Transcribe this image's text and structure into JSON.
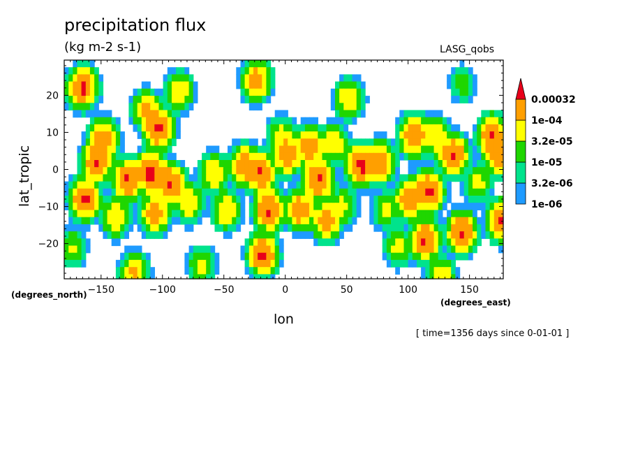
{
  "chart_data": {
    "type": "heatmap",
    "title": "precipitation flux",
    "units": "(kg m-2 s-1)",
    "dataset": "LASG_qobs",
    "xlabel": "lon",
    "ylabel": "lat_tropic",
    "x_unit_label": "(degrees_east)",
    "y_unit_label": "(degrees_north)",
    "xlim": [
      -180,
      177.5
    ],
    "ylim": [
      -29.5,
      29.5
    ],
    "x_ticks": [
      -150,
      -100,
      -50,
      0,
      50,
      100,
      150
    ],
    "x_tick_labels": [
      "−150",
      "−100",
      "−50",
      "0",
      "50",
      "100",
      "150"
    ],
    "y_ticks": [
      20,
      10,
      0,
      -10,
      -20
    ],
    "y_tick_labels": [
      "20",
      "10",
      "0",
      "−10",
      "−20"
    ],
    "timestamp": "[ time=1356 days since 0-01-01 ]",
    "colorbar": {
      "levels": [
        "1e-06",
        "3.2e-06",
        "1e-05",
        "3.2e-05",
        "1e-04",
        "0.00032"
      ],
      "level_values": [
        1e-06,
        3.2e-06,
        1e-05,
        3.2e-05,
        0.0001,
        0.00032
      ],
      "colors": [
        "#ffffff",
        "#1e9bff",
        "#00e38c",
        "#1fd600",
        "#ffff00",
        "#ff9f00",
        "#e8001a"
      ]
    },
    "blobs": [
      {
        "lon": -167,
        "lat": 23,
        "peak": 0.00038
      },
      {
        "lon": -150,
        "lat": 9,
        "peak": 0.00025
      },
      {
        "lon": -155,
        "lat": 3,
        "peak": 0.00035
      },
      {
        "lon": -165,
        "lat": -7,
        "peak": 0.0004
      },
      {
        "lon": -175,
        "lat": -20,
        "peak": 4e-05
      },
      {
        "lon": -130,
        "lat": -2,
        "peak": 0.00035
      },
      {
        "lon": -140,
        "lat": -12,
        "peak": 0.0001
      },
      {
        "lon": -125,
        "lat": -27,
        "peak": 0.00012
      },
      {
        "lon": -115,
        "lat": 17,
        "peak": 0.00012
      },
      {
        "lon": -105,
        "lat": 12,
        "peak": 0.0004
      },
      {
        "lon": -110,
        "lat": 0,
        "peak": 0.00036
      },
      {
        "lon": -95,
        "lat": -3,
        "peak": 0.00036
      },
      {
        "lon": -108,
        "lat": -11,
        "peak": 0.0002
      },
      {
        "lon": -88,
        "lat": 22,
        "peak": 0.0001
      },
      {
        "lon": -80,
        "lat": -8,
        "peak": 0.0001
      },
      {
        "lon": -70,
        "lat": -25,
        "peak": 5e-05
      },
      {
        "lon": -60,
        "lat": 0,
        "peak": 0.0001
      },
      {
        "lon": -50,
        "lat": -10,
        "peak": 0.0001
      },
      {
        "lon": -35,
        "lat": 2,
        "peak": 0.00025
      },
      {
        "lon": -22,
        "lat": 0,
        "peak": 0.00035
      },
      {
        "lon": -20,
        "lat": -22,
        "peak": 0.00038
      },
      {
        "lon": -25,
        "lat": 25,
        "peak": 0.0002
      },
      {
        "lon": -15,
        "lat": -10,
        "peak": 0.00035
      },
      {
        "lon": -5,
        "lat": 10,
        "peak": 5e-05
      },
      {
        "lon": 0,
        "lat": 5,
        "peak": 0.00025
      },
      {
        "lon": 10,
        "lat": -10,
        "peak": 0.00025
      },
      {
        "lon": 18,
        "lat": 7,
        "peak": 0.00025
      },
      {
        "lon": 25,
        "lat": -2,
        "peak": 0.00036
      },
      {
        "lon": 32,
        "lat": -13,
        "peak": 0.0002
      },
      {
        "lon": 38,
        "lat": 8,
        "peak": 0.0001
      },
      {
        "lon": 50,
        "lat": 20,
        "peak": 0.0001
      },
      {
        "lon": 60,
        "lat": 2,
        "peak": 0.0004
      },
      {
        "lon": 45,
        "lat": -9,
        "peak": 5e-05
      },
      {
        "lon": 75,
        "lat": 3,
        "peak": 0.0003
      },
      {
        "lon": 80,
        "lat": -10,
        "peak": 4e-05
      },
      {
        "lon": 90,
        "lat": -20,
        "peak": 5e-05
      },
      {
        "lon": 103,
        "lat": 10,
        "peak": 0.0003
      },
      {
        "lon": 100,
        "lat": -7,
        "peak": 0.0003
      },
      {
        "lon": 112,
        "lat": -18,
        "peak": 0.00036
      },
      {
        "lon": 115,
        "lat": -5,
        "peak": 0.0004
      },
      {
        "lon": 120,
        "lat": 10,
        "peak": 0.0001
      },
      {
        "lon": 125,
        "lat": -28,
        "peak": 0.0001
      },
      {
        "lon": 135,
        "lat": 5,
        "peak": 0.00035
      },
      {
        "lon": 142,
        "lat": -16,
        "peak": 0.00035
      },
      {
        "lon": 155,
        "lat": -3,
        "peak": 5e-05
      },
      {
        "lon": 167,
        "lat": 10,
        "peak": 0.00036
      },
      {
        "lon": 175,
        "lat": -13,
        "peak": 0.00035
      },
      {
        "lon": 172,
        "lat": 5,
        "peak": 0.00025
      },
      {
        "lon": 143,
        "lat": 24,
        "peak": 2e-05
      },
      {
        "lon": -115,
        "lat": 0,
        "peak": 0.0001
      }
    ]
  }
}
